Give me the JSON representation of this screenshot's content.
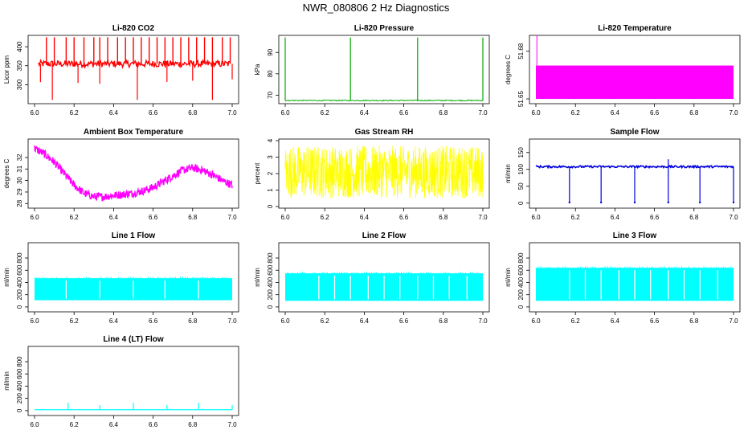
{
  "figure": {
    "title": "NWR_080806  2 Hz Diagnostics"
  },
  "chart_data": [
    {
      "type": "line",
      "title": "Li-820 CO2",
      "ylabel": "Licor ppm",
      "color": "#ff0000",
      "xlim": [
        6.0,
        7.0
      ],
      "ylim": [
        250,
        430
      ],
      "xticks": [
        "6.0",
        "6.2",
        "6.4",
        "6.6",
        "6.8",
        "7.0"
      ],
      "yticks": [
        300,
        350,
        400
      ],
      "baseline": 355,
      "spikes_up": [
        6.06,
        6.1,
        6.16,
        6.2,
        6.25,
        6.3,
        6.33,
        6.37,
        6.42,
        6.46,
        6.5,
        6.54,
        6.58,
        6.62,
        6.66,
        6.7,
        6.74,
        6.78,
        6.82,
        6.86,
        6.9,
        6.95,
        6.99
      ],
      "spike_up_value": 425,
      "spikes_down_value": 260
    },
    {
      "type": "line",
      "title": "Li-820 Pressure",
      "ylabel": "kPa",
      "color": "#00aa00",
      "xlim": [
        6.0,
        7.0
      ],
      "ylim": [
        66,
        98
      ],
      "xticks": [
        "6.0",
        "6.2",
        "6.4",
        "6.6",
        "6.8",
        "7.0"
      ],
      "yticks": [
        70,
        80,
        90
      ],
      "baseline": 67.5,
      "spikes": [
        6.0,
        6.33,
        6.67,
        7.0
      ],
      "spike_value": 97
    },
    {
      "type": "area",
      "title": "Li-820 Temperature",
      "ylabel": "degrees C",
      "color": "#ff00ff",
      "xlim": [
        6.0,
        7.0
      ],
      "ylim": [
        51.647,
        51.69
      ],
      "xticks": [
        "6.0",
        "6.2",
        "6.4",
        "6.6",
        "6.8",
        "7.0"
      ],
      "yticks": [
        "51.65",
        "51.68"
      ],
      "band": [
        51.65,
        51.671
      ],
      "spike_x": 6.005,
      "spike_value": 51.69
    },
    {
      "type": "line",
      "title": "Ambient Box Temperature",
      "ylabel": "degrees C",
      "color": "#ff00ff",
      "xlim": [
        6.0,
        7.0
      ],
      "ylim": [
        27.6,
        33.6
      ],
      "xticks": [
        "6.0",
        "6.2",
        "6.4",
        "6.6",
        "6.8",
        "7.0"
      ],
      "yticks": [
        28,
        29,
        30,
        31,
        32
      ],
      "x": [
        6.0,
        6.05,
        6.1,
        6.15,
        6.2,
        6.25,
        6.3,
        6.35,
        6.4,
        6.45,
        6.5,
        6.55,
        6.6,
        6.65,
        6.7,
        6.75,
        6.8,
        6.85,
        6.9,
        6.95,
        7.0
      ],
      "y": [
        32.8,
        32.3,
        31.6,
        30.6,
        29.6,
        28.9,
        28.6,
        28.6,
        28.7,
        28.8,
        28.9,
        29.1,
        29.4,
        29.9,
        30.4,
        30.9,
        31.1,
        30.9,
        30.5,
        30.0,
        29.6
      ]
    },
    {
      "type": "line",
      "title": "Gas Stream RH",
      "ylabel": "percent",
      "color": "#ffff00",
      "xlim": [
        6.0,
        7.0
      ],
      "ylim": [
        -0.1,
        4.1
      ],
      "xticks": [
        "6.0",
        "6.2",
        "6.4",
        "6.6",
        "6.8",
        "7.0"
      ],
      "yticks": [
        0,
        1,
        2,
        3,
        4
      ],
      "center": 2.0,
      "range": [
        0.5,
        3.7
      ]
    },
    {
      "type": "line",
      "title": "Sample Flow",
      "ylabel": "ml/min",
      "color": "#0000dd",
      "xlim": [
        6.0,
        7.0
      ],
      "ylim": [
        -15,
        190
      ],
      "xticks": [
        "6.0",
        "6.2",
        "6.4",
        "6.6",
        "6.8",
        "7.0"
      ],
      "yticks": [
        0,
        50,
        100,
        150
      ],
      "baseline": 108,
      "dips": [
        6.17,
        6.33,
        6.5,
        6.67,
        6.83,
        7.0
      ],
      "dip_value": 2,
      "spike_x": 6.67,
      "spike_value": 130
    },
    {
      "type": "area",
      "title": "Line 1 Flow",
      "ylabel": "ml/min",
      "color": "#00ffff",
      "xlim": [
        6.0,
        7.0
      ],
      "ylim": [
        -80,
        1050
      ],
      "xticks": [
        "6.0",
        "6.2",
        "6.4",
        "6.6",
        "6.8",
        "7.0"
      ],
      "yticks": [
        0,
        200,
        400,
        600,
        800
      ],
      "band": [
        110,
        470
      ],
      "gaps": [
        6.16,
        6.33,
        6.5,
        6.66,
        6.83
      ]
    },
    {
      "type": "area",
      "title": "Line 2 Flow",
      "ylabel": "ml/min",
      "color": "#00ffff",
      "xlim": [
        6.0,
        7.0
      ],
      "ylim": [
        -80,
        1050
      ],
      "xticks": [
        "6.0",
        "6.2",
        "6.4",
        "6.6",
        "6.8",
        "7.0"
      ],
      "yticks": [
        0,
        200,
        400,
        600,
        800
      ],
      "band": [
        100,
        550
      ],
      "gaps": [
        6.17,
        6.25,
        6.33,
        6.42,
        6.5,
        6.58,
        6.67,
        6.75,
        6.83,
        6.92
      ]
    },
    {
      "type": "area",
      "title": "Line 3 Flow",
      "ylabel": "ml/min",
      "color": "#00ffff",
      "xlim": [
        6.0,
        7.0
      ],
      "ylim": [
        -80,
        1050
      ],
      "xticks": [
        "6.0",
        "6.2",
        "6.4",
        "6.6",
        "6.8",
        "7.0"
      ],
      "yticks": [
        0,
        200,
        400,
        600,
        800
      ],
      "band": [
        100,
        640
      ],
      "gaps": [
        6.17,
        6.25,
        6.33,
        6.42,
        6.5,
        6.58,
        6.67,
        6.75,
        6.83,
        6.92
      ]
    },
    {
      "type": "line",
      "title": "Line 4 (LT) Flow",
      "ylabel": "ml/min",
      "color": "#00ffff",
      "xlim": [
        6.0,
        7.0
      ],
      "ylim": [
        -80,
        1050
      ],
      "xticks": [
        "6.0",
        "6.2",
        "6.4",
        "6.6",
        "6.8",
        "7.0"
      ],
      "yticks": [
        0,
        200,
        400,
        600,
        800
      ],
      "baseline": 15,
      "spikes": [
        6.17,
        6.33,
        6.5,
        6.67,
        6.83,
        7.0
      ],
      "spike_values": [
        130,
        90,
        130,
        90,
        130,
        90
      ]
    }
  ]
}
